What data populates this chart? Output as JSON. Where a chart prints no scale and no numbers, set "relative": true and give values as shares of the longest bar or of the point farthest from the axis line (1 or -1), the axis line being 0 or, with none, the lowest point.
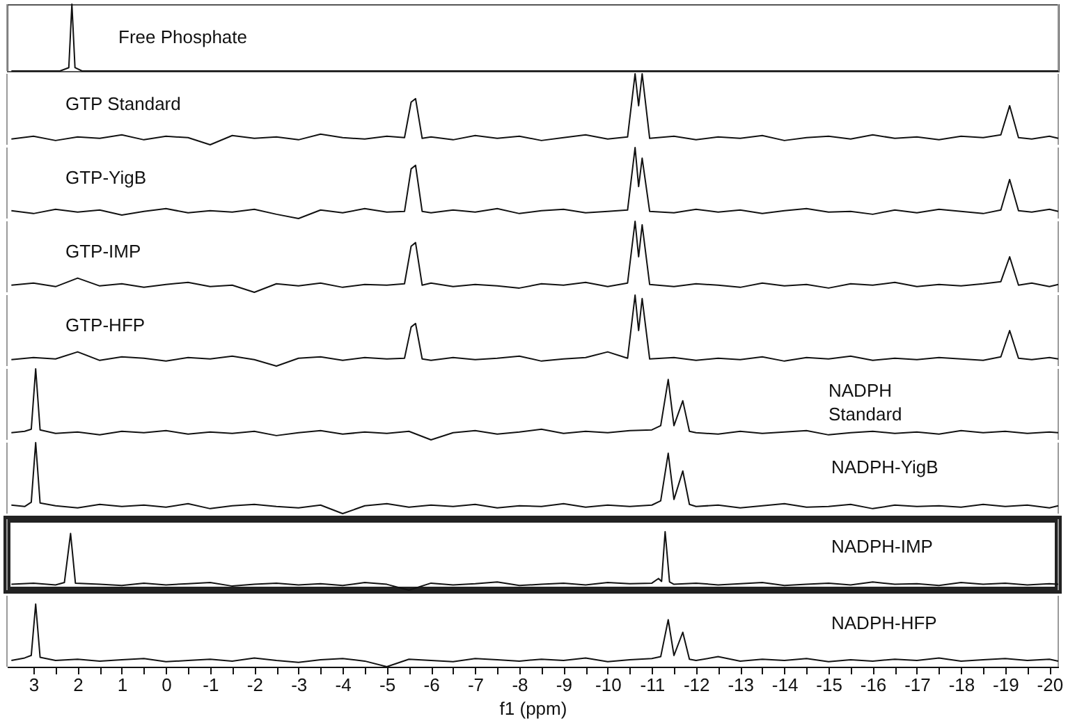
{
  "chart_data": [
    {
      "type": "line",
      "relative": true,
      "xlim": [
        3.6,
        -20.2
      ],
      "tick_labels": false,
      "series": [
        {
          "name": "Free Phosphate",
          "color": "#111111",
          "x": [
            3.5,
            2.4,
            2.2,
            2.13,
            2.06,
            1.9,
            -20.2
          ],
          "values": [
            0,
            0,
            0.05,
            1,
            0.05,
            0,
            0
          ]
        }
      ]
    },
    {
      "type": "line",
      "relative": true,
      "xlim": [
        3.6,
        -20.2
      ],
      "tick_labels": false,
      "series": [
        {
          "name": "GTP Standard",
          "color": "#111111",
          "x": [
            3.5,
            3,
            2.5,
            2,
            1.5,
            1,
            0.5,
            0,
            -0.5,
            -1,
            -1.5,
            -2,
            -2.5,
            -3,
            -3.5,
            -4,
            -4.5,
            -5,
            -5.4,
            -5.55,
            -5.65,
            -5.8,
            -6,
            -6.5,
            -7,
            -7.5,
            -8,
            -8.5,
            -9,
            -9.5,
            -10,
            -10.45,
            -10.62,
            -10.7,
            -10.78,
            -10.95,
            -11.5,
            -12,
            -12.5,
            -13,
            -13.5,
            -14,
            -14.5,
            -15,
            -15.5,
            -16,
            -16.5,
            -17,
            -17.5,
            -18,
            -18.5,
            -18.9,
            -19.1,
            -19.3,
            -19.6,
            -20,
            -20.2
          ],
          "values": [
            0.08,
            0.12,
            0.06,
            0.11,
            0.09,
            0.14,
            0.07,
            0.12,
            0.1,
            0,
            0.13,
            0.09,
            0.11,
            0.07,
            0.15,
            0.1,
            0.08,
            0.12,
            0.1,
            0.6,
            0.65,
            0.09,
            0.11,
            0.07,
            0.13,
            0.09,
            0.12,
            0.06,
            0.1,
            0.14,
            0.08,
            0.11,
            1,
            0.55,
            1,
            0.09,
            0.12,
            0.07,
            0.11,
            0.09,
            0.13,
            0.06,
            0.1,
            0.12,
            0.08,
            0.14,
            0.09,
            0.11,
            0.07,
            0.12,
            0.1,
            0.14,
            0.55,
            0.1,
            0.08,
            0.12,
            0.09
          ]
        }
      ]
    },
    {
      "type": "line",
      "relative": true,
      "xlim": [
        3.6,
        -20.2
      ],
      "tick_labels": false,
      "series": [
        {
          "name": "GTP-YigB",
          "color": "#111111",
          "x": [
            3.5,
            3,
            2.5,
            2,
            1.5,
            1,
            0.5,
            0,
            -0.5,
            -1,
            -1.5,
            -2,
            -2.5,
            -3,
            -3.5,
            -4,
            -4.5,
            -5,
            -5.4,
            -5.55,
            -5.65,
            -5.8,
            -6,
            -6.5,
            -7,
            -7.5,
            -8,
            -8.5,
            -9,
            -9.5,
            -10,
            -10.45,
            -10.62,
            -10.7,
            -10.78,
            -10.95,
            -11.5,
            -12,
            -12.5,
            -13,
            -13.5,
            -14,
            -14.5,
            -15,
            -15.5,
            -16,
            -16.5,
            -17,
            -17.5,
            -18,
            -18.5,
            -18.9,
            -19.1,
            -19.3,
            -19.6,
            -20,
            -20.2
          ],
          "values": [
            0.11,
            0.07,
            0.13,
            0.09,
            0.12,
            0.05,
            0.1,
            0.14,
            0.08,
            0.11,
            0.09,
            0.13,
            0.06,
            0,
            0.12,
            0.08,
            0.14,
            0.09,
            0.1,
            0.7,
            0.75,
            0.1,
            0.08,
            0.12,
            0.09,
            0.14,
            0.07,
            0.11,
            0.13,
            0.08,
            0.1,
            0.12,
            1,
            0.45,
            0.85,
            0.1,
            0.08,
            0.13,
            0.09,
            0.12,
            0.07,
            0.11,
            0.14,
            0.09,
            0.1,
            0.06,
            0.12,
            0.08,
            0.13,
            0.1,
            0.07,
            0.12,
            0.55,
            0.11,
            0.09,
            0.13,
            0.1
          ]
        }
      ]
    },
    {
      "type": "line",
      "relative": true,
      "xlim": [
        3.6,
        -20.2
      ],
      "tick_labels": false,
      "series": [
        {
          "name": "GTP-IMP",
          "color": "#111111",
          "x": [
            3.5,
            3,
            2.5,
            2,
            1.5,
            1,
            0.5,
            0,
            -0.5,
            -1,
            -1.5,
            -2,
            -2.5,
            -3,
            -3.5,
            -4,
            -4.5,
            -5,
            -5.4,
            -5.55,
            -5.65,
            -5.8,
            -6,
            -6.5,
            -7,
            -7.5,
            -8,
            -8.5,
            -9,
            -9.5,
            -10,
            -10.45,
            -10.62,
            -10.7,
            -10.78,
            -10.95,
            -11.5,
            -12,
            -12.5,
            -13,
            -13.5,
            -14,
            -14.5,
            -15,
            -15.5,
            -16,
            -16.5,
            -17,
            -17.5,
            -18,
            -18.5,
            -18.9,
            -19.1,
            -19.3,
            -19.6,
            -20,
            -20.2
          ],
          "values": [
            0.1,
            0.13,
            0.08,
            0.2,
            0.09,
            0.12,
            0.07,
            0.11,
            0.14,
            0.08,
            0.1,
            0,
            0.12,
            0.09,
            0.13,
            0.07,
            0.11,
            0.1,
            0.12,
            0.65,
            0.7,
            0.1,
            0.13,
            0.08,
            0.11,
            0.09,
            0.06,
            0.12,
            0.1,
            0.14,
            0.08,
            0.13,
            1,
            0.5,
            0.95,
            0.11,
            0.08,
            0.12,
            0.1,
            0.07,
            0.13,
            0.09,
            0.11,
            0.06,
            0.12,
            0.1,
            0.14,
            0.08,
            0.11,
            0.09,
            0.12,
            0.15,
            0.5,
            0.1,
            0.13,
            0.08,
            0.11
          ]
        }
      ]
    },
    {
      "type": "line",
      "relative": true,
      "xlim": [
        3.6,
        -20.2
      ],
      "tick_labels": false,
      "series": [
        {
          "name": "GTP-HFP",
          "color": "#111111",
          "x": [
            3.5,
            3,
            2.5,
            2,
            1.5,
            1,
            0.5,
            0,
            -0.5,
            -1,
            -1.5,
            -2,
            -2.5,
            -3,
            -3.5,
            -4,
            -4.5,
            -5,
            -5.4,
            -5.55,
            -5.65,
            -5.8,
            -6,
            -6.5,
            -7,
            -7.5,
            -8,
            -8.5,
            -9,
            -9.5,
            -10,
            -10.45,
            -10.62,
            -10.7,
            -10.78,
            -10.95,
            -11.5,
            -12,
            -12.5,
            -13,
            -13.5,
            -14,
            -14.5,
            -15,
            -15.5,
            -16,
            -16.5,
            -17,
            -17.5,
            -18,
            -18.5,
            -18.9,
            -19.1,
            -19.3,
            -19.6,
            -20,
            -20.2
          ],
          "values": [
            0.09,
            0.12,
            0.1,
            0.2,
            0.08,
            0.13,
            0.11,
            0.07,
            0.12,
            0.1,
            0.14,
            0.09,
            0,
            0.11,
            0.13,
            0.08,
            0.12,
            0.1,
            0.11,
            0.55,
            0.6,
            0.1,
            0.08,
            0.12,
            0.09,
            0.11,
            0.14,
            0.07,
            0.1,
            0.12,
            0.2,
            0.11,
            1,
            0.5,
            0.95,
            0.1,
            0.12,
            0.08,
            0.11,
            0.09,
            0.13,
            0.07,
            0.12,
            0.1,
            0.14,
            0.08,
            0.11,
            0.09,
            0.12,
            0.1,
            0.08,
            0.13,
            0.5,
            0.11,
            0.09,
            0.12,
            0.1
          ]
        }
      ]
    },
    {
      "type": "line",
      "relative": true,
      "xlim": [
        3.6,
        -20.2
      ],
      "tick_labels": false,
      "series": [
        {
          "name": "NADPH Standard",
          "color": "#111111",
          "x": [
            3.5,
            3.2,
            3.05,
            2.95,
            2.85,
            2.5,
            2,
            1.5,
            1,
            0.5,
            0,
            -0.5,
            -1,
            -1.5,
            -2,
            -2.5,
            -3,
            -3.5,
            -4,
            -4.5,
            -5,
            -5.5,
            -6,
            -6.5,
            -7,
            -7.5,
            -8,
            -8.5,
            -9,
            -9.5,
            -10,
            -10.5,
            -11,
            -11.2,
            -11.37,
            -11.5,
            -11.7,
            -11.85,
            -12,
            -12.5,
            -13,
            -13.5,
            -14,
            -14.5,
            -15,
            -15.5,
            -16,
            -16.5,
            -17,
            -17.5,
            -18,
            -18.5,
            -19,
            -19.5,
            -20,
            -20.2
          ],
          "values": [
            0.1,
            0.12,
            0.15,
            1,
            0.14,
            0.09,
            0.11,
            0.07,
            0.12,
            0.1,
            0.13,
            0.08,
            0.11,
            0.09,
            0.12,
            0.06,
            0.1,
            0.13,
            0.08,
            0.11,
            0.09,
            0.12,
            0,
            0.1,
            0.13,
            0.08,
            0.11,
            0.15,
            0.09,
            0.12,
            0.1,
            0.13,
            0.14,
            0.2,
            0.85,
            0.2,
            0.55,
            0.12,
            0.1,
            0.08,
            0.12,
            0.09,
            0.11,
            0.13,
            0.07,
            0.1,
            0.12,
            0.09,
            0.11,
            0.08,
            0.13,
            0.1,
            0.12,
            0.09,
            0.11,
            0.1
          ]
        }
      ]
    },
    {
      "type": "line",
      "relative": true,
      "xlim": [
        3.6,
        -20.2
      ],
      "tick_labels": false,
      "series": [
        {
          "name": "NADPH-YigB",
          "color": "#111111",
          "x": [
            3.5,
            3.2,
            3.05,
            2.95,
            2.85,
            2.5,
            2,
            1.5,
            1,
            0.5,
            0,
            -0.5,
            -1,
            -1.5,
            -2,
            -2.5,
            -3,
            -3.5,
            -4,
            -4.5,
            -5,
            -5.5,
            -6,
            -6.5,
            -7,
            -7.5,
            -8,
            -8.5,
            -9,
            -9.5,
            -10,
            -10.5,
            -11,
            -11.2,
            -11.37,
            -11.5,
            -11.7,
            -11.85,
            -12,
            -12.5,
            -13,
            -13.5,
            -14,
            -14.5,
            -15,
            -15.5,
            -16,
            -16.5,
            -17,
            -17.5,
            -18,
            -18.5,
            -19,
            -19.5,
            -20,
            -20.2
          ],
          "values": [
            0.12,
            0.1,
            0.16,
            1,
            0.15,
            0.11,
            0.08,
            0.13,
            0.1,
            0.12,
            0.09,
            0.14,
            0.07,
            0.11,
            0.13,
            0.1,
            0.08,
            0.12,
            0,
            0.11,
            0.14,
            0.09,
            0.12,
            0.1,
            0.13,
            0.08,
            0.11,
            0.1,
            0.14,
            0.09,
            0.12,
            0.1,
            0.12,
            0.18,
            0.85,
            0.2,
            0.6,
            0.13,
            0.1,
            0.12,
            0.08,
            0.11,
            0.14,
            0.09,
            0.1,
            0.13,
            0.07,
            0.12,
            0.1,
            0.11,
            0.09,
            0.13,
            0.1,
            0.12,
            0.08,
            0.11
          ]
        }
      ]
    },
    {
      "type": "line",
      "relative": true,
      "xlim": [
        3.6,
        -20.2
      ],
      "tick_labels": false,
      "series": [
        {
          "name": "NADPH-IMP",
          "color": "#111111",
          "x": [
            3.5,
            3,
            2.5,
            2.3,
            2.16,
            2.05,
            1.5,
            1,
            0.5,
            0,
            -0.5,
            -1,
            -1.5,
            -2,
            -2.5,
            -3,
            -3.5,
            -4,
            -4.5,
            -5,
            -5.5,
            -6,
            -6.5,
            -7,
            -7.5,
            -8,
            -8.5,
            -9,
            -9.5,
            -10,
            -10.5,
            -11,
            -11.15,
            -11.22,
            -11.3,
            -11.4,
            -11.5,
            -12,
            -12.5,
            -13,
            -13.5,
            -14,
            -14.5,
            -15,
            -15.5,
            -16,
            -16.5,
            -17,
            -17.5,
            -18,
            -18.5,
            -19,
            -19.5,
            -20,
            -20.2
          ],
          "values": [
            0.1,
            0.12,
            0.09,
            0.13,
            0.97,
            0.12,
            0.1,
            0.08,
            0.12,
            0.09,
            0.11,
            0.13,
            0.07,
            0.1,
            0.12,
            0.09,
            0.11,
            0.08,
            0.13,
            0.1,
            0,
            0.12,
            0.09,
            0.11,
            0.14,
            0.08,
            0.1,
            0.12,
            0.09,
            0.13,
            0.11,
            0.12,
            0.2,
            0.15,
            1,
            0.14,
            0.1,
            0.12,
            0.09,
            0.11,
            0.13,
            0.08,
            0.1,
            0.12,
            0.09,
            0.14,
            0.1,
            0.11,
            0.08,
            0.13,
            0.1,
            0.12,
            0.09,
            0.11,
            0.1
          ]
        }
      ]
    },
    {
      "type": "line",
      "relative": true,
      "xlim": [
        3.6,
        -20.2
      ],
      "tick_labels": "x",
      "xlabel": "f1 (ppm)",
      "xticks": [
        3,
        {
          "value": 2.5,
          "label": null
        },
        2,
        {
          "value": 1.5,
          "label": null
        },
        1,
        {
          "value": 0.5,
          "label": null
        },
        0,
        {
          "value": -0.5,
          "label": null
        },
        -1,
        {
          "value": -1.5,
          "label": null
        },
        -2,
        {
          "value": -2.5,
          "label": null
        },
        -3,
        {
          "value": -3.5,
          "label": null
        },
        -4,
        {
          "value": -4.5,
          "label": null
        },
        -5,
        {
          "value": -5.5,
          "label": null
        },
        -6,
        {
          "value": -6.5,
          "label": null
        },
        -7,
        {
          "value": -7.5,
          "label": null
        },
        -8,
        {
          "value": -8.5,
          "label": null
        },
        -9,
        {
          "value": -9.5,
          "label": null
        },
        -10,
        {
          "value": -10.5,
          "label": null
        },
        -11,
        {
          "value": -11.5,
          "label": null
        },
        -12,
        {
          "value": -12.5,
          "label": null
        },
        -13,
        {
          "value": -13.5,
          "label": null
        },
        -14,
        {
          "value": -14.5,
          "label": null
        },
        -15,
        {
          "value": -15.5,
          "label": null
        },
        -16,
        {
          "value": -16.5,
          "label": null
        },
        -17,
        {
          "value": -17.5,
          "label": null
        },
        -18,
        {
          "value": -18.5,
          "label": null
        },
        -19,
        {
          "value": -19.5,
          "label": null
        },
        -20
      ],
      "series": [
        {
          "name": "NADPH-HFP",
          "color": "#111111",
          "x": [
            3.5,
            3.2,
            3.05,
            2.95,
            2.85,
            2.5,
            2,
            1.5,
            1,
            0.5,
            0,
            -0.5,
            -1,
            -1.5,
            -2,
            -2.5,
            -3,
            -3.5,
            -4,
            -4.5,
            -5,
            -5.5,
            -6,
            -6.5,
            -7,
            -7.5,
            -8,
            -8.5,
            -9,
            -9.5,
            -10,
            -10.5,
            -11,
            -11.2,
            -11.37,
            -11.5,
            -11.7,
            -11.85,
            -12,
            -12.5,
            -13,
            -13.5,
            -14,
            -14.5,
            -15,
            -15.5,
            -16,
            -16.5,
            -17,
            -17.5,
            -18,
            -18.5,
            -19,
            -19.5,
            -20,
            -20.2
          ],
          "values": [
            0.1,
            0.14,
            0.18,
            1,
            0.15,
            0.1,
            0.12,
            0.09,
            0.11,
            0.13,
            0.08,
            0.1,
            0.12,
            0.09,
            0.14,
            0.1,
            0.07,
            0.11,
            0.13,
            0.09,
            0,
            0.12,
            0.1,
            0.08,
            0.13,
            0.11,
            0.09,
            0.12,
            0.1,
            0.14,
            0.08,
            0.11,
            0.13,
            0.16,
            0.75,
            0.18,
            0.55,
            0.12,
            0.1,
            0.16,
            0.09,
            0.12,
            0.1,
            0.13,
            0.08,
            0.11,
            0.09,
            0.12,
            0.1,
            0.14,
            0.09,
            0.11,
            0.13,
            0.1,
            0.12,
            0.09
          ]
        }
      ]
    }
  ]
}
